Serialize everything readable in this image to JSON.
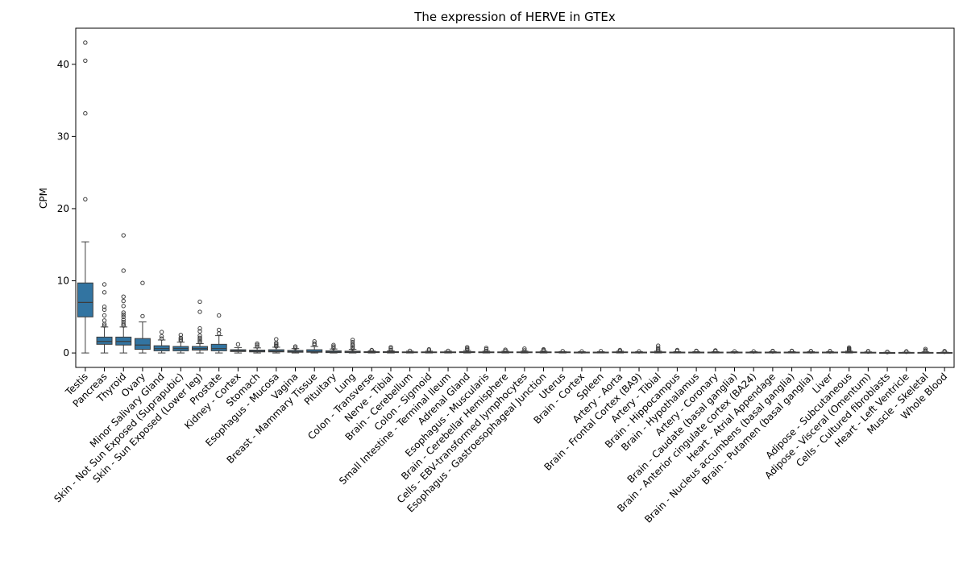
{
  "chart_data": {
    "type": "boxplot",
    "title": "The expression of HERVE in GTEx",
    "xlabel": "",
    "ylabel": "CPM",
    "ylim": [
      -2,
      45
    ],
    "yticks": [
      0,
      10,
      20,
      30,
      40
    ],
    "grid": false,
    "legend": "none",
    "box_color": "#3274a1",
    "categories": [
      "Testis",
      "Pancreas",
      "Thyroid",
      "Ovary",
      "Minor Salivary Gland",
      "Skin - Not Sun Exposed (Suprapubic)",
      "Skin - Sun Exposed (Lower leg)",
      "Prostate",
      "Kidney - Cortex",
      "Stomach",
      "Esophagus - Mucosa",
      "Vagina",
      "Breast - Mammary Tissue",
      "Pituitary",
      "Lung",
      "Colon - Transverse",
      "Nerve - Tibial",
      "Brain - Cerebellum",
      "Colon - Sigmoid",
      "Small Intestine - Terminal Ileum",
      "Adrenal Gland",
      "Esophagus - Muscularis",
      "Brain - Cerebellar Hemisphere",
      "Cells - EBV-transformed lymphocytes",
      "Esophagus - Gastroesophageal Junction",
      "Uterus",
      "Brain - Cortex",
      "Spleen",
      "Artery - Aorta",
      "Brain - Frontal Cortex (BA9)",
      "Artery - Tibial",
      "Brain - Hippocampus",
      "Brain - Hypothalamus",
      "Artery - Coronary",
      "Brain - Caudate (basal ganglia)",
      "Brain - Anterior cingulate cortex (BA24)",
      "Heart - Atrial Appendage",
      "Brain - Nucleus accumbens (basal ganglia)",
      "Brain - Putamen (basal ganglia)",
      "Liver",
      "Adipose - Subcutaneous",
      "Adipose - Visceral (Omentum)",
      "Cells - Cultured fibroblasts",
      "Heart - Left Ventricle",
      "Muscle - Skeletal",
      "Whole Blood"
    ],
    "boxes": [
      {
        "whislo": 0,
        "q1": 5.0,
        "med": 7.0,
        "q3": 9.7,
        "whishi": 15.4,
        "fliers": [
          21.3,
          33.2,
          40.5,
          43.0
        ]
      },
      {
        "whislo": 0,
        "q1": 1.2,
        "med": 1.6,
        "q3": 2.2,
        "whishi": 3.6,
        "fliers": [
          3.8,
          4.0,
          4.5,
          5.2,
          6.0,
          6.4,
          8.4,
          9.5
        ]
      },
      {
        "whislo": 0,
        "q1": 1.1,
        "med": 1.6,
        "q3": 2.2,
        "whishi": 3.6,
        "fliers": [
          3.8,
          4.0,
          4.3,
          4.6,
          5.0,
          5.3,
          5.6,
          6.5,
          7.2,
          7.8,
          11.4,
          16.3
        ]
      },
      {
        "whislo": 0,
        "q1": 0.5,
        "med": 1.1,
        "q3": 2.0,
        "whishi": 4.3,
        "fliers": [
          5.1,
          9.7
        ]
      },
      {
        "whislo": 0,
        "q1": 0.3,
        "med": 0.6,
        "q3": 1.0,
        "whishi": 1.8,
        "fliers": [
          2.0,
          2.3,
          2.9
        ]
      },
      {
        "whislo": 0,
        "q1": 0.3,
        "med": 0.6,
        "q3": 0.9,
        "whishi": 1.5,
        "fliers": [
          1.7,
          1.9,
          2.1,
          2.5
        ]
      },
      {
        "whislo": 0,
        "q1": 0.4,
        "med": 0.6,
        "q3": 0.9,
        "whishi": 1.3,
        "fliers": [
          1.5,
          1.7,
          1.9,
          2.1,
          2.4,
          3.0,
          3.4,
          5.7,
          7.1
        ]
      },
      {
        "whislo": 0,
        "q1": 0.3,
        "med": 0.6,
        "q3": 1.2,
        "whishi": 2.4,
        "fliers": [
          2.7,
          3.2,
          5.2
        ]
      },
      {
        "whislo": 0,
        "q1": 0.2,
        "med": 0.3,
        "q3": 0.45,
        "whishi": 0.75,
        "fliers": [
          1.2
        ]
      },
      {
        "whislo": 0,
        "q1": 0.15,
        "med": 0.25,
        "q3": 0.4,
        "whishi": 0.7,
        "fliers": [
          0.9,
          1.1,
          1.3
        ]
      },
      {
        "whislo": 0,
        "q1": 0.15,
        "med": 0.25,
        "q3": 0.45,
        "whishi": 0.8,
        "fliers": [
          0.9,
          1.0,
          1.2,
          1.4,
          1.9
        ]
      },
      {
        "whislo": 0,
        "q1": 0.1,
        "med": 0.2,
        "q3": 0.35,
        "whishi": 0.6,
        "fliers": [
          0.7,
          0.9
        ]
      },
      {
        "whislo": 0,
        "q1": 0.1,
        "med": 0.2,
        "q3": 0.45,
        "whishi": 0.9,
        "fliers": [
          1.1,
          1.3,
          1.6
        ]
      },
      {
        "whislo": 0,
        "q1": 0.05,
        "med": 0.15,
        "q3": 0.3,
        "whishi": 0.55,
        "fliers": [
          0.7,
          0.9,
          1.1
        ]
      },
      {
        "whislo": 0,
        "q1": 0.05,
        "med": 0.15,
        "q3": 0.25,
        "whishi": 0.5,
        "fliers": [
          0.6,
          0.8,
          1.0,
          1.2,
          1.5,
          1.8
        ]
      },
      {
        "whislo": 0,
        "q1": 0.05,
        "med": 0.1,
        "q3": 0.18,
        "whishi": 0.3,
        "fliers": [
          0.35,
          0.4
        ]
      },
      {
        "whislo": 0,
        "q1": 0.05,
        "med": 0.1,
        "q3": 0.18,
        "whishi": 0.3,
        "fliers": [
          0.4,
          0.6,
          0.8
        ]
      },
      {
        "whislo": 0,
        "q1": 0.05,
        "med": 0.1,
        "q3": 0.15,
        "whishi": 0.25,
        "fliers": [
          0.3
        ]
      },
      {
        "whislo": 0,
        "q1": 0.05,
        "med": 0.1,
        "q3": 0.15,
        "whishi": 0.25,
        "fliers": [
          0.35,
          0.5
        ]
      },
      {
        "whislo": 0,
        "q1": 0.05,
        "med": 0.1,
        "q3": 0.15,
        "whishi": 0.25,
        "fliers": [
          0.3
        ]
      },
      {
        "whislo": 0,
        "q1": 0.05,
        "med": 0.1,
        "q3": 0.18,
        "whishi": 0.35,
        "fliers": [
          0.45,
          0.6,
          0.8
        ]
      },
      {
        "whislo": 0,
        "q1": 0.05,
        "med": 0.1,
        "q3": 0.15,
        "whishi": 0.25,
        "fliers": [
          0.3,
          0.5,
          0.7
        ]
      },
      {
        "whislo": 0,
        "q1": 0.05,
        "med": 0.1,
        "q3": 0.15,
        "whishi": 0.25,
        "fliers": [
          0.3,
          0.45
        ]
      },
      {
        "whislo": 0,
        "q1": 0.05,
        "med": 0.1,
        "q3": 0.15,
        "whishi": 0.25,
        "fliers": [
          0.35,
          0.6
        ]
      },
      {
        "whislo": 0,
        "q1": 0.05,
        "med": 0.1,
        "q3": 0.15,
        "whishi": 0.25,
        "fliers": [
          0.3,
          0.4,
          0.5
        ]
      },
      {
        "whislo": 0,
        "q1": 0.05,
        "med": 0.1,
        "q3": 0.15,
        "whishi": 0.2,
        "fliers": [
          0.25
        ]
      },
      {
        "whislo": 0,
        "q1": 0.03,
        "med": 0.08,
        "q3": 0.12,
        "whishi": 0.18,
        "fliers": [
          0.22
        ]
      },
      {
        "whislo": 0,
        "q1": 0.03,
        "med": 0.08,
        "q3": 0.12,
        "whishi": 0.18,
        "fliers": [
          0.25
        ]
      },
      {
        "whislo": 0,
        "q1": 0.05,
        "med": 0.1,
        "q3": 0.15,
        "whishi": 0.25,
        "fliers": [
          0.3,
          0.4
        ]
      },
      {
        "whislo": 0,
        "q1": 0.03,
        "med": 0.08,
        "q3": 0.12,
        "whishi": 0.18,
        "fliers": [
          0.22
        ]
      },
      {
        "whislo": 0,
        "q1": 0.05,
        "med": 0.1,
        "q3": 0.15,
        "whishi": 0.25,
        "fliers": [
          0.35,
          0.5,
          0.7,
          1.0
        ]
      },
      {
        "whislo": 0,
        "q1": 0.03,
        "med": 0.08,
        "q3": 0.12,
        "whishi": 0.18,
        "fliers": [
          0.3,
          0.4
        ]
      },
      {
        "whislo": 0,
        "q1": 0.03,
        "med": 0.08,
        "q3": 0.12,
        "whishi": 0.18,
        "fliers": [
          0.25,
          0.3
        ]
      },
      {
        "whislo": 0,
        "q1": 0.03,
        "med": 0.08,
        "q3": 0.12,
        "whishi": 0.18,
        "fliers": [
          0.25,
          0.35
        ]
      },
      {
        "whislo": 0,
        "q1": 0.03,
        "med": 0.08,
        "q3": 0.12,
        "whishi": 0.18,
        "fliers": [
          0.22
        ]
      },
      {
        "whislo": 0,
        "q1": 0.03,
        "med": 0.08,
        "q3": 0.12,
        "whishi": 0.18,
        "fliers": [
          0.22
        ]
      },
      {
        "whislo": 0,
        "q1": 0.03,
        "med": 0.08,
        "q3": 0.12,
        "whishi": 0.18,
        "fliers": [
          0.22,
          0.28
        ]
      },
      {
        "whislo": 0,
        "q1": 0.03,
        "med": 0.08,
        "q3": 0.12,
        "whishi": 0.18,
        "fliers": [
          0.25,
          0.3
        ]
      },
      {
        "whislo": 0,
        "q1": 0.03,
        "med": 0.08,
        "q3": 0.12,
        "whishi": 0.18,
        "fliers": [
          0.22,
          0.26
        ]
      },
      {
        "whislo": 0,
        "q1": 0.03,
        "med": 0.08,
        "q3": 0.12,
        "whishi": 0.18,
        "fliers": [
          0.22,
          0.26
        ]
      },
      {
        "whislo": 0,
        "q1": 0.05,
        "med": 0.1,
        "q3": 0.15,
        "whishi": 0.25,
        "fliers": [
          0.3,
          0.4,
          0.5,
          0.6,
          0.75
        ]
      },
      {
        "whislo": 0,
        "q1": 0.03,
        "med": 0.06,
        "q3": 0.1,
        "whishi": 0.15,
        "fliers": [
          0.2,
          0.25
        ]
      },
      {
        "whislo": 0,
        "q1": 0.02,
        "med": 0.04,
        "q3": 0.06,
        "whishi": 0.1,
        "fliers": [
          0.13,
          0.16
        ]
      },
      {
        "whislo": 0,
        "q1": 0.02,
        "med": 0.05,
        "q3": 0.08,
        "whishi": 0.12,
        "fliers": [
          0.16,
          0.22
        ]
      },
      {
        "whislo": 0,
        "q1": 0.02,
        "med": 0.05,
        "q3": 0.08,
        "whishi": 0.15,
        "fliers": [
          0.25,
          0.35,
          0.55
        ]
      },
      {
        "whislo": 0,
        "q1": 0.02,
        "med": 0.04,
        "q3": 0.07,
        "whishi": 0.12,
        "fliers": [
          0.16,
          0.2,
          0.25
        ]
      }
    ]
  }
}
